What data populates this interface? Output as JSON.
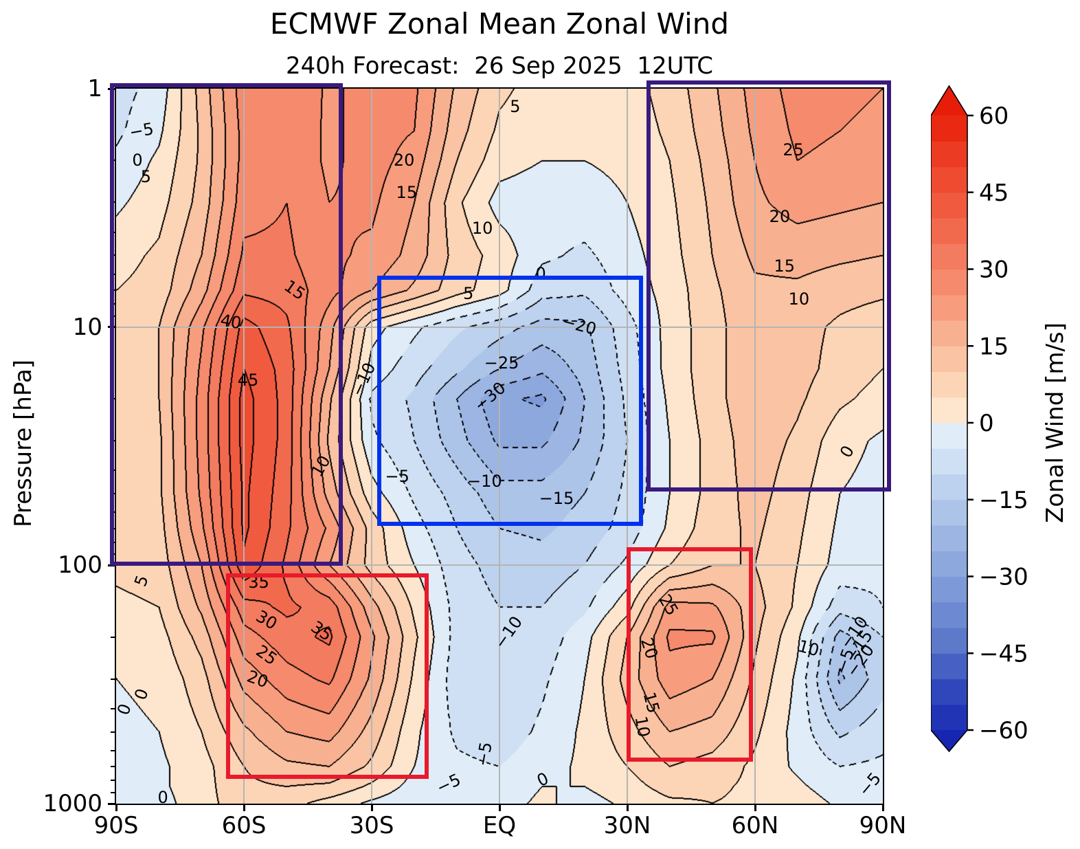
{
  "chart_data": {
    "type": "filled_contour",
    "title": "ECMWF Zonal Mean Zonal Wind",
    "subtitle": "240h Forecast:  26 Sep 2025  12UTC",
    "ylabel": "Pressure [hPa]",
    "contour_interval": 5,
    "x_ticks": [
      {
        "lat": -90,
        "label": "90S"
      },
      {
        "lat": -60,
        "label": "60S"
      },
      {
        "lat": -30,
        "label": "30S"
      },
      {
        "lat": 0,
        "label": "EQ"
      },
      {
        "lat": 30,
        "label": "30N"
      },
      {
        "lat": 60,
        "label": "60N"
      },
      {
        "lat": 90,
        "label": "90N"
      }
    ],
    "y_ticks": [
      {
        "p": 1,
        "label": "1"
      },
      {
        "p": 10,
        "label": "10"
      },
      {
        "p": 100,
        "label": "100"
      },
      {
        "p": 1000,
        "label": "1000"
      }
    ],
    "grid_lines": {
      "lat_lines": [
        -60,
        -30,
        0,
        30,
        60
      ],
      "p_lines": [
        10,
        100
      ]
    },
    "colorbar": {
      "label": "Zonal Wind [m/s]",
      "min": -60,
      "max": 60,
      "band_step": 5,
      "ticks": [
        {
          "v": 60,
          "label": "60"
        },
        {
          "v": 45,
          "label": "45"
        },
        {
          "v": 30,
          "label": "30"
        },
        {
          "v": 15,
          "label": "15"
        },
        {
          "v": 0,
          "label": "0"
        },
        {
          "v": -15,
          "label": "−15"
        },
        {
          "v": -30,
          "label": "−30"
        },
        {
          "v": -45,
          "label": "−45"
        },
        {
          "v": -60,
          "label": "−60"
        }
      ],
      "band_colors": [
        "#2134b6",
        "#3047bc",
        "#4660c4",
        "#5d7aca",
        "#6d89d1",
        "#7e99d7",
        "#8da8dd",
        "#9cb5e3",
        "#adc4e9",
        "#bdd2ee",
        "#cfe0f4",
        "#e0edf9",
        "#fde6cd",
        "#fcd5b7",
        "#fac3a3",
        "#f8b190",
        "#f79d7e",
        "#f58a6c",
        "#f37b5f",
        "#f26a4e",
        "#f05b40",
        "#ee4b31",
        "#ec3b23",
        "#e92912"
      ],
      "under_color": "#1726b0",
      "over_color": "#e71d0a"
    },
    "grid": {
      "lats": [
        -90,
        -80,
        -70,
        -60,
        -50,
        -40,
        -30,
        -20,
        -10,
        0,
        10,
        20,
        30,
        40,
        50,
        60,
        70,
        80,
        90
      ],
      "pressures": [
        1,
        1.5,
        2,
        3,
        5,
        7,
        10,
        15,
        20,
        30,
        50,
        70,
        100,
        150,
        200,
        300,
        500,
        700,
        850,
        1000
      ],
      "values": [
        [
          -7,
          -3,
          12,
          28,
          30,
          24,
          27,
          26,
          14,
          6,
          3,
          2,
          3,
          7,
          14,
          22,
          27,
          26,
          25
        ],
        [
          -6,
          -1,
          11,
          27,
          29,
          24,
          27,
          25,
          12,
          4,
          2,
          1,
          2,
          6,
          13,
          21,
          26,
          25,
          24
        ],
        [
          -4,
          1,
          11,
          27,
          29,
          24,
          27,
          23,
          10,
          2,
          0,
          0,
          1,
          5,
          12,
          20,
          25,
          24,
          23
        ],
        [
          -1,
          3,
          12,
          28,
          30,
          25,
          26,
          20,
          6,
          -2,
          -3,
          -2,
          0,
          4,
          11,
          19,
          22,
          21,
          20
        ],
        [
          3,
          6,
          15,
          31,
          31,
          26,
          24,
          18,
          8,
          3,
          -4,
          -6,
          -2,
          3,
          10,
          16,
          17,
          16,
          15
        ],
        [
          5,
          7,
          18,
          34,
          33,
          27,
          20,
          14,
          7,
          2,
          -8,
          -9,
          -3,
          2,
          9,
          14,
          14,
          12,
          11
        ],
        [
          7,
          10,
          24,
          42,
          36,
          22,
          2,
          -4,
          -9,
          -13,
          -17,
          -16,
          -7,
          2,
          8,
          14,
          12,
          9,
          7
        ],
        [
          7,
          10,
          26,
          45,
          38,
          20,
          -2,
          -8,
          -14,
          -20,
          -24,
          -18,
          -8,
          2,
          8,
          14,
          12,
          8,
          5
        ],
        [
          7,
          10,
          27,
          47,
          38,
          16,
          -6,
          -11,
          -20,
          -29,
          -31,
          -20,
          -9,
          1,
          8,
          14,
          11,
          6,
          3
        ],
        [
          7,
          9,
          27,
          47,
          38,
          14,
          -4,
          -10,
          -18,
          -26,
          -26,
          -19,
          -10,
          0,
          7,
          13,
          9,
          2,
          -1
        ],
        [
          7,
          9,
          26,
          46,
          37,
          18,
          2,
          -6,
          -12,
          -18,
          -18,
          -15,
          -9,
          0,
          7,
          12,
          7,
          0,
          -2
        ],
        [
          7,
          8,
          24,
          46,
          36,
          24,
          8,
          -3,
          -10,
          -15,
          -16,
          -13,
          -8,
          1,
          8,
          11,
          6,
          -1,
          -3
        ],
        [
          6,
          7,
          20,
          44,
          34,
          20,
          8,
          0,
          -8,
          -12,
          -13,
          -10,
          -4,
          5,
          10,
          10,
          5,
          -2,
          -4
        ],
        [
          4,
          5,
          16,
          33,
          36,
          33,
          17,
          4,
          -7,
          -10,
          -10,
          -6,
          3,
          22,
          21,
          12,
          4,
          -8,
          -5
        ],
        [
          2,
          3,
          12,
          28,
          33,
          36,
          21,
          6,
          -7,
          -10,
          -8,
          -2,
          10,
          26,
          26,
          11,
          1,
          -17,
          -10
        ],
        [
          0,
          1,
          8,
          22,
          28,
          31,
          19,
          4,
          -8,
          -10,
          -6,
          0,
          12,
          23,
          20,
          9,
          -1,
          -21,
          -12
        ],
        [
          -1,
          0,
          5,
          14,
          20,
          22,
          13,
          1,
          -6,
          -8,
          -4,
          1,
          8,
          15,
          13,
          6,
          -2,
          -11,
          -7
        ],
        [
          -2,
          -1,
          3,
          10,
          14,
          15,
          9,
          0,
          -4,
          -5,
          -2,
          1,
          5,
          10,
          8,
          4,
          -1,
          -5,
          -4
        ],
        [
          -2,
          -1,
          3,
          9,
          10,
          9,
          4,
          -2,
          -5,
          -3,
          0,
          0,
          3,
          7,
          6,
          4,
          1,
          -3,
          -5
        ],
        [
          -2,
          -2,
          3,
          8,
          7,
          3,
          -1,
          -4,
          -5,
          -2,
          1,
          -2,
          1,
          4,
          5,
          4,
          3,
          -1,
          -5
        ]
      ]
    },
    "contour_labels": [
      {
        "lat": -84,
        "p": 1.5,
        "r": -10,
        "t": "−5"
      },
      {
        "lat": -85,
        "p": 2.0,
        "r": 0,
        "t": "0"
      },
      {
        "lat": -83,
        "p": 2.34,
        "r": 0,
        "t": "5"
      },
      {
        "lat": -48,
        "p": 7.0,
        "r": 35,
        "t": "15"
      },
      {
        "lat": -63,
        "p": 9.5,
        "r": 10,
        "t": "40"
      },
      {
        "lat": -59,
        "p": 16.7,
        "r": 0,
        "t": "45"
      },
      {
        "lat": -42,
        "p": 38.3,
        "r": -60,
        "t": "10"
      },
      {
        "lat": -32,
        "p": 16.6,
        "r": -65,
        "t": "−10"
      },
      {
        "lat": -22.4,
        "p": 2.0,
        "r": 0,
        "t": "20"
      },
      {
        "lat": -21.8,
        "p": 2.73,
        "r": 0,
        "t": "15"
      },
      {
        "lat": -4,
        "p": 3.85,
        "r": 0,
        "t": "10"
      },
      {
        "lat": 3.7,
        "p": 1.19,
        "r": 0,
        "t": "5"
      },
      {
        "lat": 9.7,
        "p": 5.97,
        "r": 0,
        "t": "0"
      },
      {
        "lat": -7.3,
        "p": 7.24,
        "r": 0,
        "t": "5"
      },
      {
        "lat": 18.7,
        "p": 9.8,
        "r": 15,
        "t": "−20"
      },
      {
        "lat": 0.5,
        "p": 14.2,
        "r": 0,
        "t": "−25"
      },
      {
        "lat": -2.3,
        "p": 19.6,
        "r": -40,
        "t": "−30"
      },
      {
        "lat": -24,
        "p": 42.3,
        "r": 0,
        "t": "−5"
      },
      {
        "lat": -3.5,
        "p": 44.4,
        "r": 0,
        "t": "−10"
      },
      {
        "lat": 13.4,
        "p": 52.4,
        "r": 0,
        "t": "−15"
      },
      {
        "lat": 69,
        "p": 1.81,
        "r": 0,
        "t": "25"
      },
      {
        "lat": 65.8,
        "p": 3.44,
        "r": 0,
        "t": "20"
      },
      {
        "lat": 66.9,
        "p": 5.55,
        "r": 0,
        "t": "15"
      },
      {
        "lat": 70.3,
        "p": 7.64,
        "r": 0,
        "t": "10"
      },
      {
        "lat": 81.6,
        "p": 33.3,
        "r": -60,
        "t": "0"
      },
      {
        "lat": -84,
        "p": 116,
        "r": -70,
        "t": "5"
      },
      {
        "lat": -56.5,
        "p": 118,
        "r": 0,
        "t": "35"
      },
      {
        "lat": -54.7,
        "p": 170,
        "r": 30,
        "t": "30"
      },
      {
        "lat": -41.8,
        "p": 189,
        "r": 35,
        "t": "35"
      },
      {
        "lat": -54.7,
        "p": 238,
        "r": 35,
        "t": "25"
      },
      {
        "lat": -56.8,
        "p": 300,
        "r": 20,
        "t": "20"
      },
      {
        "lat": -84,
        "p": 348,
        "r": -70,
        "t": "0"
      },
      {
        "lat": -88,
        "p": 402,
        "r": -70,
        "t": "0"
      },
      {
        "lat": -79,
        "p": 941,
        "r": 0,
        "t": "0"
      },
      {
        "lat": 2.1,
        "p": 191,
        "r": -55,
        "t": "−10"
      },
      {
        "lat": -3.5,
        "p": 620,
        "r": -80,
        "t": "−5"
      },
      {
        "lat": -11.9,
        "p": 823,
        "r": -25,
        "t": "−5"
      },
      {
        "lat": 10.2,
        "p": 790,
        "r": -25,
        "t": "0"
      },
      {
        "lat": 39.7,
        "p": 147,
        "r": 60,
        "t": "25"
      },
      {
        "lat": 35.2,
        "p": 223,
        "r": 72,
        "t": "20"
      },
      {
        "lat": 35.6,
        "p": 377,
        "r": 75,
        "t": "15"
      },
      {
        "lat": 33.5,
        "p": 475,
        "r": 80,
        "t": "10"
      },
      {
        "lat": 72.6,
        "p": 223,
        "r": 15,
        "t": "10"
      },
      {
        "lat": 83.2,
        "p": 191,
        "r": -55,
        "t": "−10"
      },
      {
        "lat": 84.4,
        "p": 218,
        "r": -55,
        "t": "−15"
      },
      {
        "lat": 84.7,
        "p": 251,
        "r": -55,
        "t": "−20"
      },
      {
        "lat": 81.1,
        "p": 251,
        "r": -70,
        "t": "−5"
      },
      {
        "lat": 86.9,
        "p": 828,
        "r": -50,
        "t": "−5"
      }
    ],
    "boxes": [
      {
        "name": "highlight-box-purple-left",
        "color": "#3a1a7e",
        "lat1": -91,
        "lat2": -37.3,
        "p1": 0.97,
        "p2": 98.5
      },
      {
        "name": "highlight-box-purple-right",
        "color": "#3a1a7e",
        "lat1": 35,
        "lat2": 91.5,
        "p1": 0.94,
        "p2": 48
      },
      {
        "name": "highlight-box-blue-middle",
        "color": "#0032ee",
        "lat1": -28.2,
        "lat2": 33.2,
        "p1": 6.2,
        "p2": 67
      },
      {
        "name": "highlight-box-red-left",
        "color": "#e81a2b",
        "lat1": -63.7,
        "lat2": -17.1,
        "p1": 110,
        "p2": 771
      },
      {
        "name": "highlight-box-red-right",
        "color": "#e81a2b",
        "lat1": 30.3,
        "lat2": 59,
        "p1": 85.6,
        "p2": 653
      }
    ]
  }
}
